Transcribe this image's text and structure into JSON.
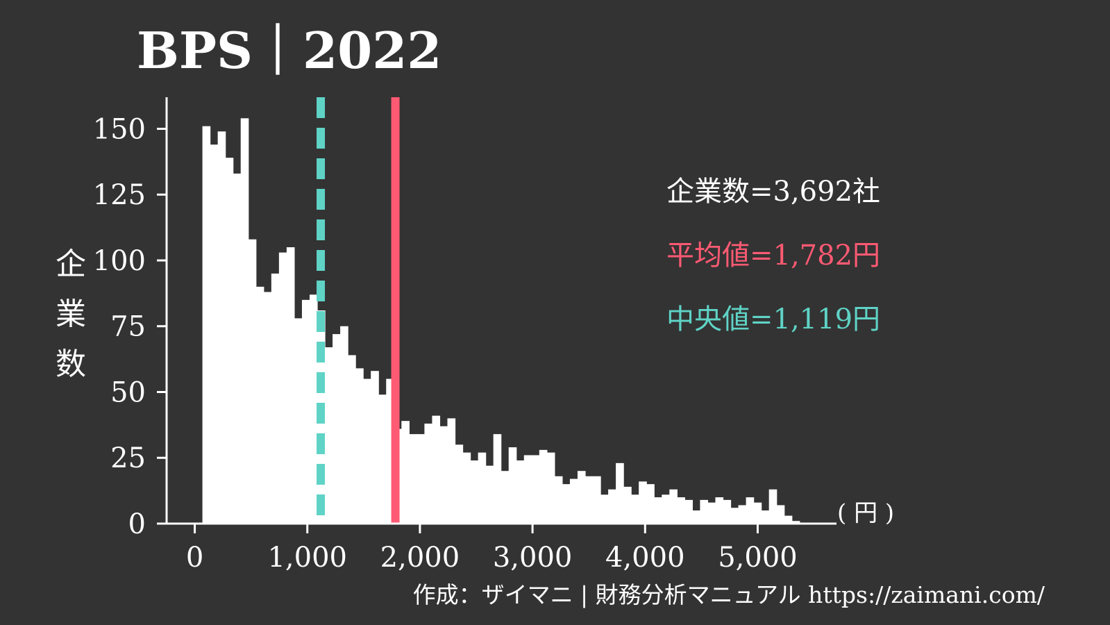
{
  "chart_data": {
    "type": "bar",
    "title": "BPS｜2022",
    "ylabel": "企業数",
    "xunit": "( 円 )",
    "xlim": [
      -250,
      5700
    ],
    "ylim": [
      0,
      162
    ],
    "xticks": [
      0,
      1000,
      2000,
      3000,
      4000,
      5000
    ],
    "xtick_labels": [
      "0",
      "1,000",
      "2,000",
      "3,000",
      "4,000",
      "5,000"
    ],
    "yticks": [
      0,
      25,
      50,
      75,
      100,
      125,
      150
    ],
    "ytick_labels": [
      "0",
      "25",
      "50",
      "75",
      "100",
      "125",
      "150"
    ],
    "bin_start": 0,
    "bin_width": 68,
    "values": [
      0,
      151,
      144,
      149,
      139,
      133,
      154,
      108,
      90,
      88,
      95,
      103,
      105,
      78,
      85,
      87,
      81,
      67,
      72,
      75,
      64,
      59,
      55,
      58,
      49,
      55,
      36,
      39,
      34,
      34,
      38,
      41,
      37,
      40,
      30,
      27,
      24,
      27,
      22,
      34,
      20,
      29,
      24,
      26,
      26,
      28,
      27,
      18,
      15,
      17,
      20,
      18,
      18,
      11,
      13,
      23,
      14,
      11,
      16,
      15,
      10,
      11,
      13,
      10,
      9,
      5,
      9,
      8,
      10,
      9,
      6,
      7,
      10,
      8,
      5,
      13,
      7,
      3,
      1
    ],
    "mean": 1782,
    "median": 1119,
    "annotations": [
      {
        "text": "企業数=3,692社",
        "color": "#ffffff"
      },
      {
        "text": "平均値=1,782円",
        "color": "#ff5a73"
      },
      {
        "text": "中央値=1,119円",
        "color": "#5fd3c6"
      }
    ],
    "grid": false,
    "legend": "none"
  },
  "credit": "作成：ザイマニ | 財務分析マニュアル https://zaimani.com/",
  "colors": {
    "background": "#333333",
    "bars": "#ffffff",
    "mean": "#ff5a73",
    "median": "#5fd3c6"
  }
}
